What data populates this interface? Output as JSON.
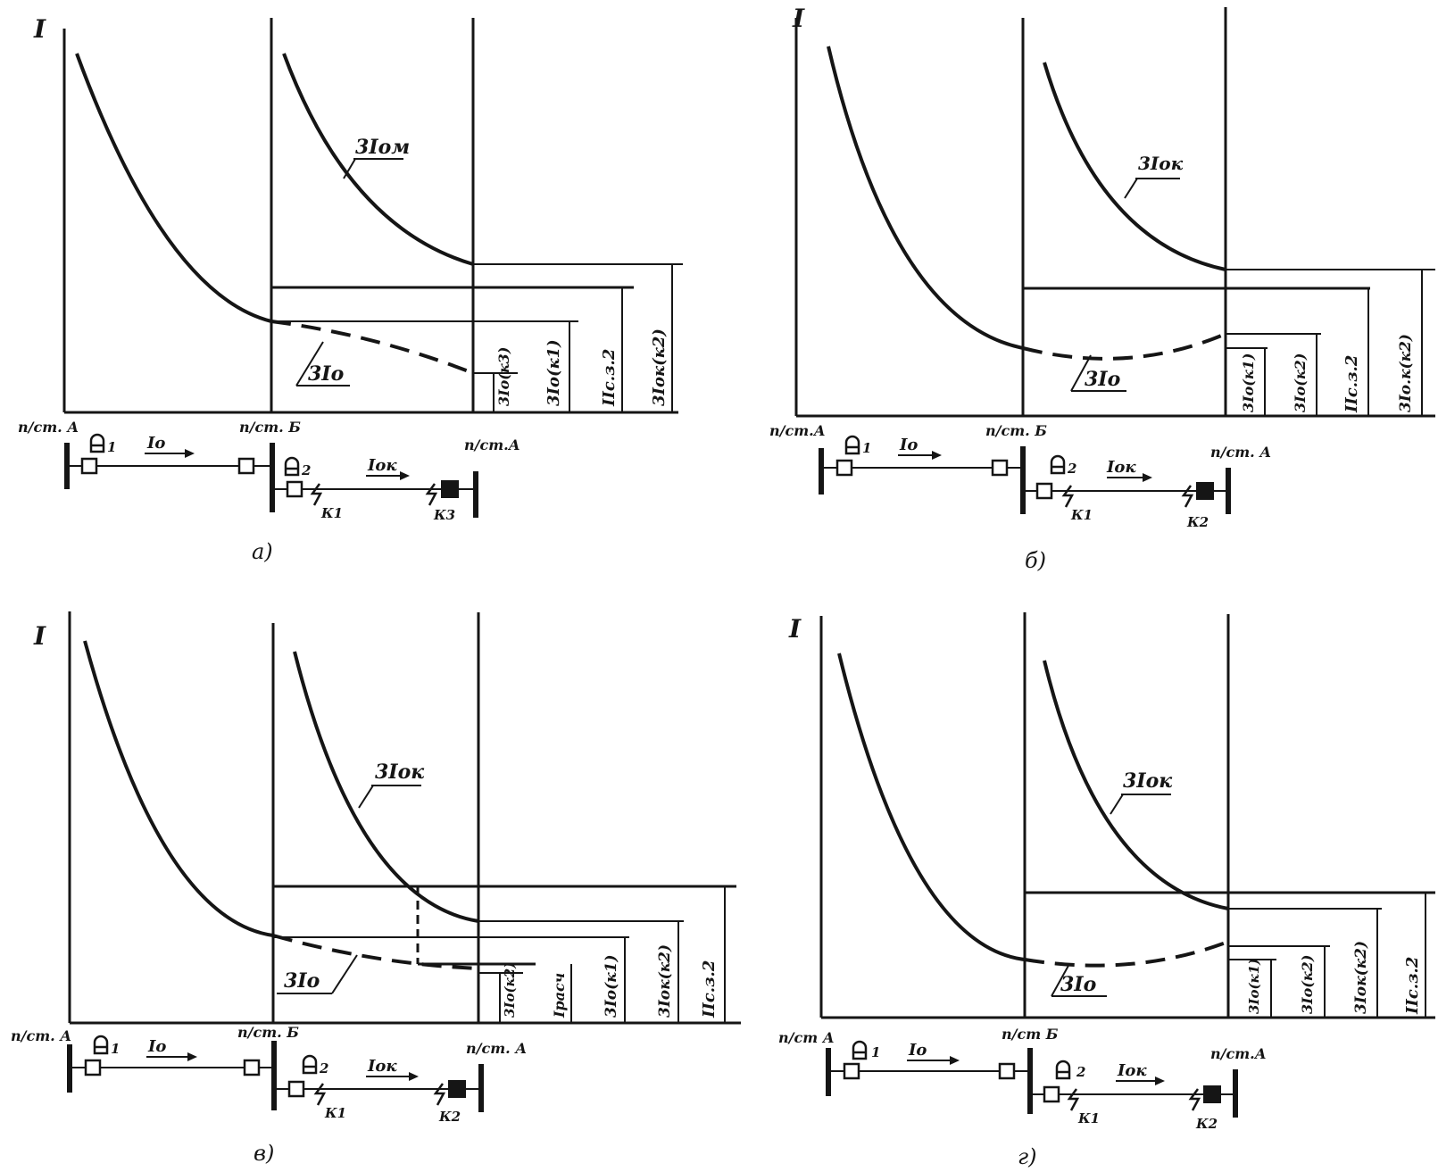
{
  "colors": {
    "ink": "#151515",
    "paper": "#ffffff"
  },
  "panels": [
    {
      "id": "a",
      "caption": "а)",
      "axis_label": "I",
      "labels": {
        "curve_upper": "3Iом",
        "curve_lower": "3Iо"
      },
      "measures": [
        "3Iо(к3)",
        "3Iо(к1)",
        "IIс.з.2",
        "3Iок(к2)"
      ],
      "network": {
        "station1": "п/ст. А",
        "station2": "п/ст. Б",
        "station3": "п/ст.А",
        "breaker1": "1",
        "breaker2": "2",
        "flow1": "Iо",
        "flow2": "Iок",
        "fault1": "К1",
        "fault2": "К3"
      }
    },
    {
      "id": "b",
      "caption": "б)",
      "axis_label": "I",
      "labels": {
        "curve_upper": "3Iок",
        "curve_lower": "3Iо"
      },
      "measures": [
        "3Iо(к1)",
        "3Iо(к2)",
        "IIс.з.2",
        "3Iо.к(к2)"
      ],
      "network": {
        "station1": "п/ст.А",
        "station2": "п/ст. Б",
        "station3": "п/ст. А",
        "breaker1": "1",
        "breaker2": "2",
        "flow1": "Iо",
        "flow2": "Iок",
        "fault1": "К1",
        "fault2": "К2"
      }
    },
    {
      "id": "v",
      "caption": "в)",
      "axis_label": "I",
      "labels": {
        "curve_upper": "3Iок",
        "curve_lower": "3Iо"
      },
      "measures": [
        "3Iо(к2)",
        "Iрасч",
        "3Iо(к1)",
        "3Iок(к2)",
        "IIс.з.2"
      ],
      "network": {
        "station1": "п/ст. А",
        "station2": "п/ст. Б",
        "station3": "п/ст. А",
        "breaker1": "1",
        "breaker2": "2",
        "flow1": "Iо",
        "flow2": "Iок",
        "fault1": "К1",
        "fault2": "К2"
      }
    },
    {
      "id": "g",
      "caption": "г)",
      "axis_label": "I",
      "labels": {
        "curve_upper": "3Iок",
        "curve_lower": "3Iо"
      },
      "measures": [
        "3Iо(к1)",
        "3Iо(к2)",
        "3Iок(к2)",
        "IIс.з.2"
      ],
      "network": {
        "station1": "п/ст А",
        "station2": "п/ст Б",
        "station3": "п/ст.А",
        "breaker1": "1",
        "breaker2": "2",
        "flow1": "Iо",
        "flow2": "Iок",
        "fault1": "К1",
        "fault2": "К2"
      }
    }
  ]
}
